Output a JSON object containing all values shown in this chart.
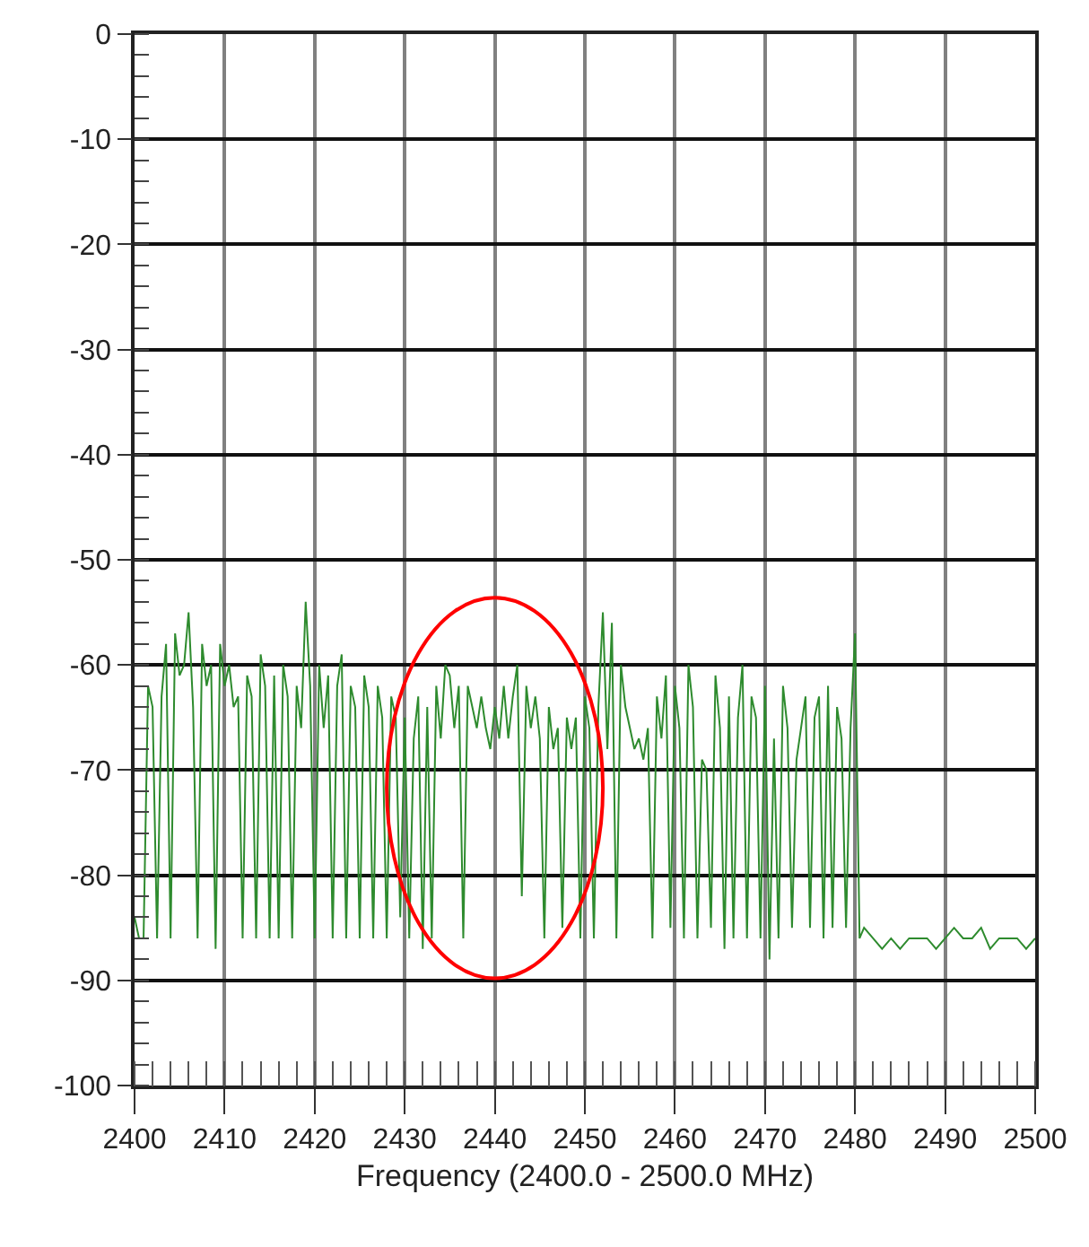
{
  "chart_data": {
    "type": "line",
    "xlabel": "Frequency (2400.0 - 2500.0 MHz)",
    "xlim": [
      2400,
      2500
    ],
    "xticks": [
      2400,
      2410,
      2420,
      2430,
      2440,
      2450,
      2460,
      2470,
      2480,
      2490,
      2500
    ],
    "ylim": [
      -100,
      0
    ],
    "yticks": [
      -100,
      -90,
      -80,
      -70,
      -60,
      -50,
      -40,
      -30,
      -20,
      -10,
      0
    ],
    "grid": true,
    "marker": "none",
    "line_style": "solid",
    "series": [
      {
        "color": "#2e8b2e",
        "x": [
          2400,
          2400.5,
          2401,
          2401.5,
          2402,
          2402.5,
          2403,
          2403.5,
          2404,
          2404.5,
          2405,
          2405.5,
          2406,
          2406.5,
          2407,
          2407.5,
          2408,
          2408.5,
          2409,
          2409.5,
          2410,
          2410.5,
          2411,
          2411.5,
          2412,
          2412.5,
          2413,
          2413.5,
          2414,
          2414.5,
          2415,
          2415.5,
          2416,
          2416.5,
          2417,
          2417.5,
          2418,
          2418.5,
          2419,
          2419.5,
          2420,
          2420.5,
          2421,
          2421.5,
          2422,
          2422.5,
          2423,
          2423.5,
          2424,
          2424.5,
          2425,
          2425.5,
          2426,
          2426.5,
          2427,
          2427.5,
          2428,
          2428.5,
          2429,
          2429.5,
          2430,
          2430.5,
          2431,
          2431.5,
          2432,
          2432.5,
          2433,
          2433.5,
          2434,
          2434.5,
          2435,
          2435.5,
          2436,
          2436.5,
          2437,
          2437.5,
          2438,
          2438.5,
          2439,
          2439.5,
          2440,
          2440.5,
          2441,
          2441.5,
          2442,
          2442.5,
          2443,
          2443.5,
          2444,
          2444.5,
          2445,
          2445.5,
          2446,
          2446.5,
          2447,
          2447.5,
          2448,
          2448.5,
          2449,
          2449.5,
          2450,
          2450.5,
          2451,
          2451.5,
          2452,
          2452.5,
          2453,
          2453.5,
          2454,
          2454.5,
          2455,
          2455.5,
          2456,
          2456.5,
          2457,
          2457.5,
          2458,
          2458.5,
          2459,
          2459.5,
          2460,
          2460.5,
          2461,
          2461.5,
          2462,
          2462.5,
          2463,
          2463.5,
          2464,
          2464.5,
          2465,
          2465.5,
          2466,
          2466.5,
          2467,
          2467.5,
          2468,
          2468.5,
          2469,
          2469.5,
          2470,
          2470.5,
          2471,
          2471.5,
          2472,
          2472.5,
          2473,
          2473.5,
          2474,
          2474.5,
          2475,
          2475.5,
          2476,
          2476.5,
          2477,
          2477.5,
          2478,
          2478.5,
          2479,
          2479.5,
          2480,
          2480.5,
          2481,
          2482,
          2483,
          2484,
          2485,
          2486,
          2487,
          2488,
          2489,
          2490,
          2491,
          2492,
          2493,
          2494,
          2495,
          2496,
          2497,
          2498,
          2499,
          2500
        ],
        "values": [
          -84,
          -86,
          -86,
          -62,
          -64,
          -86,
          -63,
          -58,
          -86,
          -57,
          -61,
          -60,
          -55,
          -64,
          -86,
          -58,
          -62,
          -60,
          -87,
          -58,
          -62,
          -60,
          -64,
          -63,
          -86,
          -61,
          -63,
          -86,
          -59,
          -62,
          -86,
          -61,
          -86,
          -60,
          -63,
          -86,
          -62,
          -66,
          -54,
          -62,
          -86,
          -60,
          -66,
          -61,
          -86,
          -62,
          -59,
          -86,
          -62,
          -64,
          -86,
          -61,
          -64,
          -86,
          -62,
          -65,
          -86,
          -63,
          -65,
          -84,
          -65,
          -86,
          -67,
          -63,
          -87,
          -64,
          -86,
          -62,
          -67,
          -60,
          -61,
          -66,
          -62,
          -86,
          -62,
          -64,
          -66,
          -63,
          -66,
          -68,
          -64,
          -67,
          -62,
          -67,
          -63,
          -60,
          -82,
          -62,
          -66,
          -63,
          -67,
          -86,
          -64,
          -68,
          -66,
          -85,
          -65,
          -68,
          -65,
          -86,
          -63,
          -66,
          -86,
          -64,
          -55,
          -68,
          -56,
          -86,
          -60,
          -64,
          -66,
          -68,
          -67,
          -69,
          -66,
          -86,
          -63,
          -67,
          -61,
          -85,
          -62,
          -66,
          -86,
          -60,
          -64,
          -86,
          -69,
          -70,
          -85,
          -61,
          -66,
          -87,
          -63,
          -86,
          -65,
          -60,
          -86,
          -63,
          -65,
          -86,
          -62,
          -88,
          -67,
          -86,
          -62,
          -66,
          -85,
          -69,
          -66,
          -63,
          -85,
          -65,
          -63,
          -86,
          -62,
          -85,
          -64,
          -67,
          -85,
          -66,
          -57,
          -86,
          -85,
          -86,
          -87,
          -86,
          -87,
          -86,
          -86,
          -86,
          -87,
          -86,
          -85,
          -86,
          -86,
          -85,
          -87,
          -86,
          -86,
          -86,
          -87,
          -86
        ]
      }
    ]
  }
}
